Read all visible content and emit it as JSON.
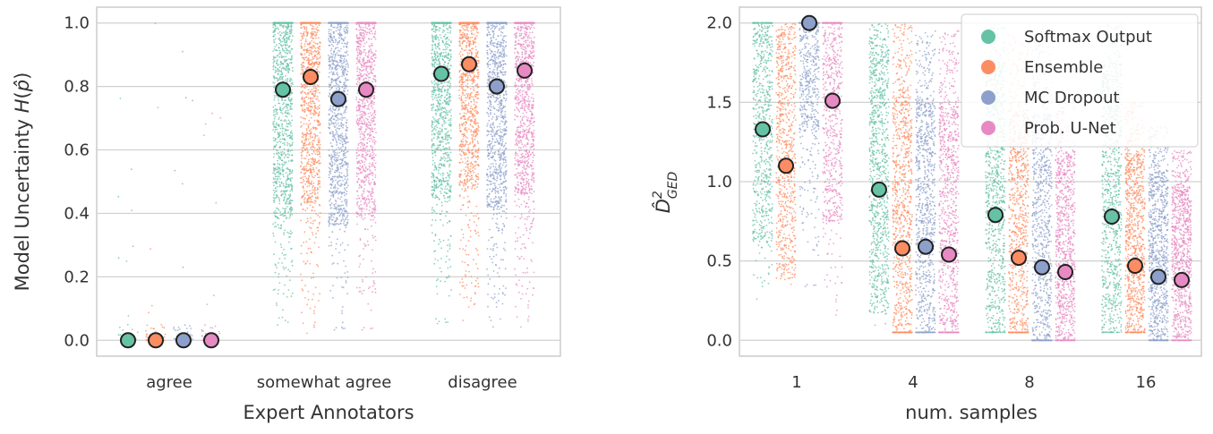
{
  "colors": {
    "Softmax Output": "#66c2a5",
    "Ensemble": "#fc8d62",
    "MC Dropout": "#8da0cb",
    "Prob. U-Net": "#e78ac3",
    "grid": "#d0d0d0",
    "frame": "#cccccc",
    "marker_edge": "#222222"
  },
  "chart_data": [
    {
      "type": "scatter",
      "subtype": "strip plot with mean markers",
      "xlabel": "Expert Annotators",
      "ylabel": "Model Uncertainty H(p̂)",
      "ylabel_parts": {
        "main": "Model Uncertainty ",
        "func": "H",
        "open": "(",
        "sym": "p̂",
        "close": ")"
      },
      "categories": [
        "agree",
        "somewhat agree",
        "disagree"
      ],
      "ylim": [
        -0.05,
        1.05
      ],
      "yticks": [
        "0.0",
        "0.2",
        "0.4",
        "0.6",
        "0.8",
        "1.0"
      ],
      "ytick_values": [
        0.0,
        0.2,
        0.4,
        0.6,
        0.8,
        1.0
      ],
      "grid": "horizontal",
      "series": [
        {
          "name": "Softmax Output",
          "means": [
            0.0,
            0.79,
            0.84
          ]
        },
        {
          "name": "Ensemble",
          "means": [
            0.0,
            0.83,
            0.87
          ]
        },
        {
          "name": "MC Dropout",
          "means": [
            0.0,
            0.76,
            0.8
          ]
        },
        {
          "name": "Prob. U-Net",
          "means": [
            0.0,
            0.79,
            0.85
          ]
        }
      ],
      "point_ranges": [
        [
          [
            0.0,
            1.0
          ],
          [
            0.0,
            1.0
          ],
          [
            0.0,
            1.0
          ],
          [
            0.0,
            1.0
          ]
        ],
        [
          [
            0.01,
            1.0
          ],
          [
            0.01,
            1.0
          ],
          [
            0.01,
            1.0
          ],
          [
            0.01,
            1.0
          ]
        ],
        [
          [
            0.03,
            1.0
          ],
          [
            0.03,
            1.0
          ],
          [
            0.03,
            1.0
          ],
          [
            0.03,
            1.0
          ]
        ]
      ]
    },
    {
      "type": "scatter",
      "subtype": "strip plot with mean markers",
      "xlabel": "num. samples",
      "ylabel": "D̂²GED",
      "ylabel_parts": {
        "base": "D̂",
        "sup": "2",
        "sub": "GED"
      },
      "categories": [
        "1",
        "4",
        "8",
        "16"
      ],
      "ylim": [
        -0.1,
        2.1
      ],
      "yticks": [
        "0.0",
        "0.5",
        "1.0",
        "1.5",
        "2.0"
      ],
      "ytick_values": [
        0.0,
        0.5,
        1.0,
        1.5,
        2.0
      ],
      "grid": "horizontal",
      "legend": {
        "placement": "top-right",
        "entries": [
          "Softmax Output",
          "Ensemble",
          "MC Dropout",
          "Prob. U-Net"
        ]
      },
      "series": [
        {
          "name": "Softmax Output",
          "means": [
            1.33,
            0.95,
            0.79,
            0.78
          ]
        },
        {
          "name": "Ensemble",
          "means": [
            1.1,
            0.58,
            0.52,
            0.47
          ]
        },
        {
          "name": "MC Dropout",
          "means": [
            2.0,
            0.59,
            0.46,
            0.4
          ]
        },
        {
          "name": "Prob. U-Net",
          "means": [
            1.51,
            0.54,
            0.43,
            0.38
          ]
        }
      ],
      "point_ranges": [
        [
          [
            0.2,
            2.0
          ],
          [
            0.2,
            2.0
          ],
          [
            0.3,
            2.0
          ],
          [
            0.1,
            2.0
          ]
        ],
        [
          [
            0.05,
            2.0
          ],
          [
            0.05,
            2.0
          ],
          [
            0.05,
            1.95
          ],
          [
            0.05,
            1.95
          ]
        ],
        [
          [
            0.05,
            2.0
          ],
          [
            0.05,
            1.95
          ],
          [
            0.0,
            1.95
          ],
          [
            0.0,
            1.5
          ]
        ],
        [
          [
            0.05,
            2.0
          ],
          [
            0.05,
            1.5
          ],
          [
            0.0,
            1.35
          ],
          [
            0.0,
            1.2
          ]
        ]
      ]
    }
  ]
}
